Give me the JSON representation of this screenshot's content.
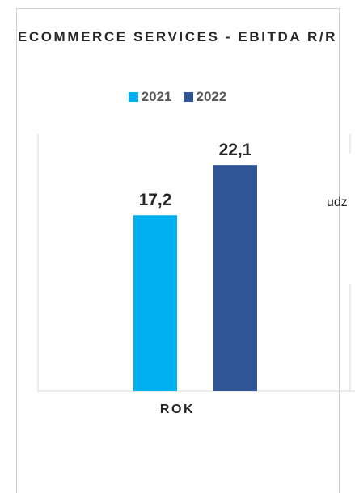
{
  "chart_data": {
    "type": "bar",
    "title": "ECOMMERCE SERVICES - EBITDA R/R",
    "categories": [
      "ROK"
    ],
    "series": [
      {
        "name": "2021",
        "values": [
          17.2
        ],
        "label": "17,2",
        "color": "#00b0f0"
      },
      {
        "name": "2022",
        "values": [
          22.1
        ],
        "label": "22,1",
        "color": "#2f5597"
      }
    ],
    "xlabel": "ROK",
    "ylabel": "",
    "ylim": [
      0,
      24.8
    ],
    "grid": false,
    "legend": "top"
  },
  "overflow_text": "udz"
}
